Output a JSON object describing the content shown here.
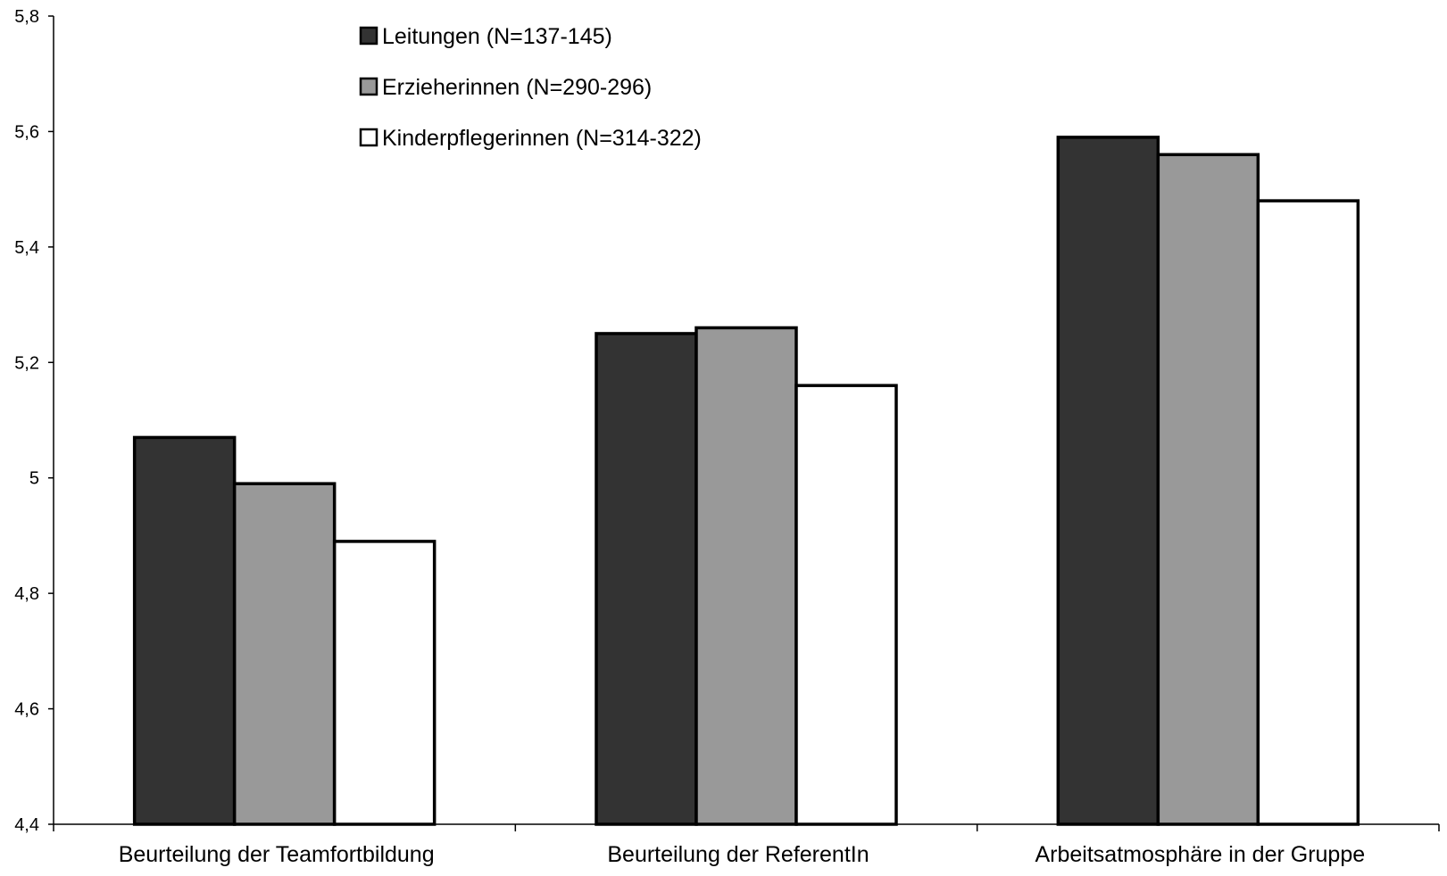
{
  "chart_data": {
    "type": "bar",
    "title": "",
    "xlabel": "",
    "ylabel": "",
    "categories": [
      "Beurteilung der Teamfortbildung",
      "Beurteilung der ReferentIn",
      "Arbeitsatmosphäre in der Gruppe"
    ],
    "series": [
      {
        "name": "Leitungen (N=137-145)",
        "color": "#333333",
        "values": [
          5.07,
          5.25,
          5.59
        ]
      },
      {
        "name": "Erzieherinnen (N=290-296)",
        "color": "#999999",
        "values": [
          4.99,
          5.26,
          5.56
        ]
      },
      {
        "name": "Kinderpflegerinnen (N=314-322)",
        "color": "#ffffff",
        "values": [
          4.89,
          5.16,
          5.48
        ]
      }
    ],
    "ylim": [
      4.4,
      5.8
    ],
    "yticks": [
      "4,4",
      "4,6",
      "4,8",
      "5",
      "5,2",
      "5,4",
      "5,6",
      "5,8"
    ],
    "grid": false,
    "legend_position": "top-left"
  }
}
